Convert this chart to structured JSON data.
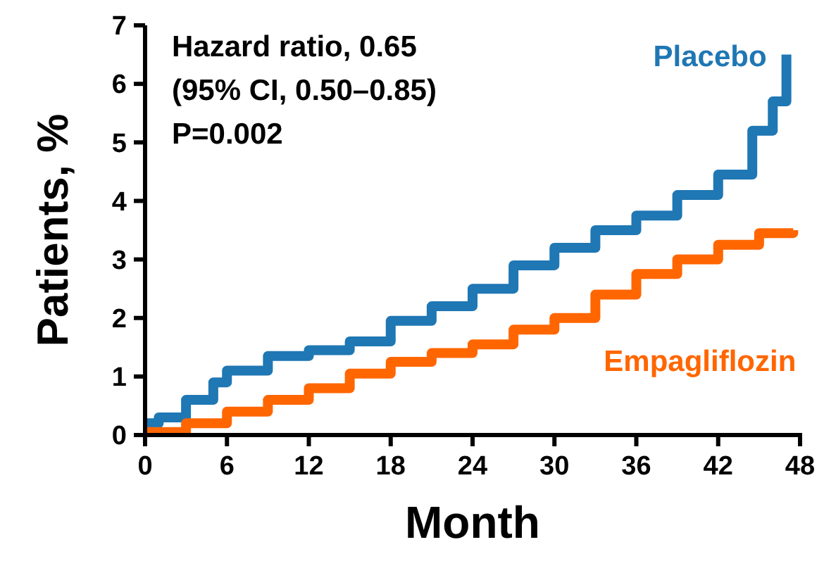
{
  "chart_data": {
    "type": "step",
    "xlabel": "Month",
    "ylabel": "Patients, %",
    "xlim": [
      0,
      48
    ],
    "xticks": [
      0,
      6,
      12,
      18,
      24,
      30,
      36,
      42,
      48
    ],
    "ylim": [
      0,
      7
    ],
    "yticks": [
      0,
      1,
      2,
      3,
      4,
      5,
      6,
      7
    ],
    "grid": false,
    "annotations": [
      "Hazard ratio, 0.65",
      "(95% CI, 0.50–0.85)",
      "P=0.002"
    ],
    "series": [
      {
        "name": "Placebo",
        "color": "#1f77b4",
        "x": [
          0,
          1,
          3,
          5,
          6,
          9,
          12,
          15,
          18,
          21,
          24,
          27,
          30,
          33,
          36,
          39,
          42,
          44,
          44.5,
          46,
          47
        ],
        "values": [
          0.2,
          0.3,
          0.6,
          0.9,
          1.1,
          1.35,
          1.45,
          1.6,
          1.95,
          2.2,
          2.5,
          2.9,
          3.2,
          3.5,
          3.75,
          4.1,
          4.45,
          4.45,
          5.2,
          5.7,
          6.5
        ]
      },
      {
        "name": "Empagliflozin",
        "color": "#ff6600",
        "x": [
          0,
          3,
          6,
          9,
          12,
          15,
          18,
          21,
          24,
          27,
          30,
          33,
          36,
          39,
          42,
          45,
          47.5
        ],
        "values": [
          0.05,
          0.2,
          0.4,
          0.6,
          0.8,
          1.05,
          1.25,
          1.4,
          1.55,
          1.8,
          2.0,
          2.4,
          2.75,
          3.0,
          3.25,
          3.45,
          3.5
        ]
      }
    ]
  }
}
